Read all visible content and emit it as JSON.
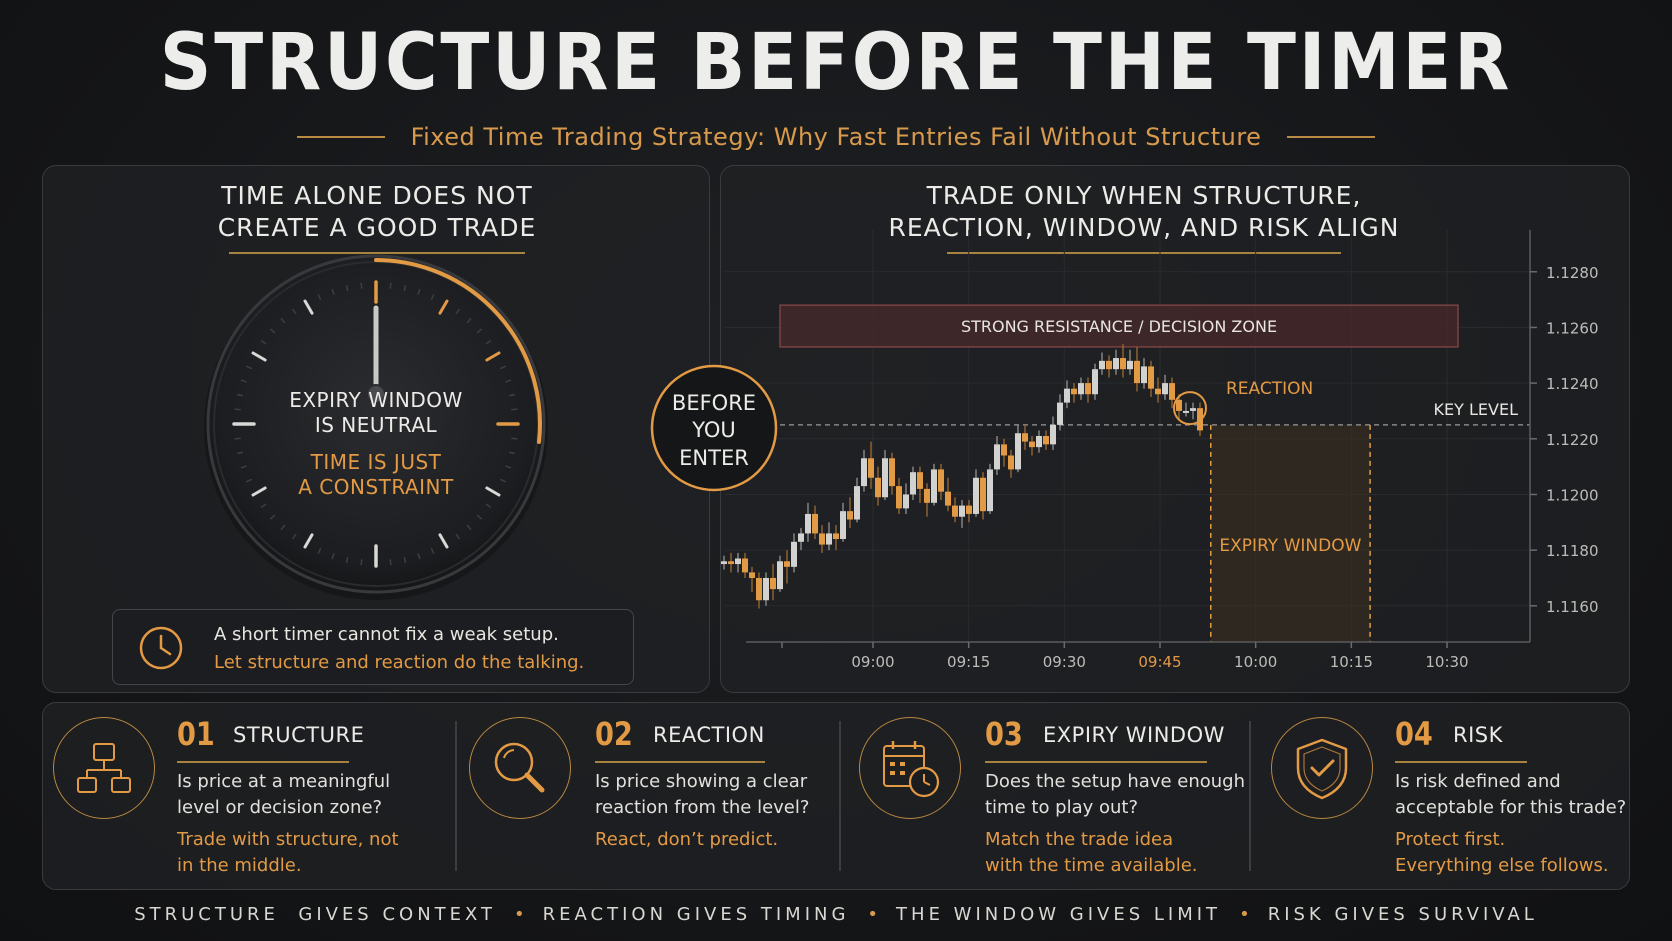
{
  "title": "STRUCTURE BEFORE THE TIMER",
  "subtitle": "Fixed Time Trading Strategy: Why Fast Entries Fail Without Structure",
  "left_panel": {
    "title_line1": "TIME ALONE DOES NOT",
    "title_line2": "CREATE A GOOD TRADE",
    "dial_line1": "EXPIRY WINDOW",
    "dial_line2": "IS NEUTRAL",
    "dial_line3": "TIME IS JUST",
    "dial_line4": "A CONSTRAINT",
    "tip_line1": "A short timer cannot fix a weak setup.",
    "tip_line2": "Let structure and reaction do the talking.",
    "tip_icon": "clock-icon"
  },
  "right_panel": {
    "title_line1": "TRADE ONLY WHEN STRUCTURE,",
    "title_line2": "REACTION, WINDOW, AND RISK ALIGN",
    "before_line1": "BEFORE",
    "before_line2": "YOU",
    "before_line3": "ENTER",
    "zone_label": "STRONG RESISTANCE / DECISION ZONE",
    "reaction_label": "REACTION",
    "key_level_label": "KEY LEVEL",
    "expiry_label": "EXPIRY WINDOW"
  },
  "chart_data": {
    "type": "candlestick",
    "y_ticks": [
      "1.1280",
      "1.1260",
      "1.1240",
      "1.1220",
      "1.1200",
      "1.1180",
      "1.1160"
    ],
    "y_tick_values": [
      1.128,
      1.126,
      1.124,
      1.122,
      1.12,
      1.118,
      1.116
    ],
    "x_ticks": [
      "09:00",
      "09:15",
      "09:30",
      "09:45",
      "10:00",
      "10:15",
      "10:30"
    ],
    "highlight_x_tick": "09:45",
    "ylim": [
      1.1147,
      1.1295
    ],
    "key_level": 1.1225,
    "resistance_zone": [
      1.1253,
      1.1268
    ],
    "expiry_window": [
      "09:47",
      "10:17"
    ],
    "colors": {
      "bull": "#d2d2d0",
      "bear": "#e39a45",
      "accent": "#e39a45"
    },
    "candles": [
      [
        "08:44",
        1.1175,
        1.1176,
        1.1173,
        1.1178
      ],
      [
        "08:45",
        1.1176,
        1.1175,
        1.1172,
        1.1179
      ],
      [
        "08:46",
        1.1175,
        1.1177,
        1.1172,
        1.1179
      ],
      [
        "08:47",
        1.1177,
        1.1172,
        1.117,
        1.1179
      ],
      [
        "08:48",
        1.1172,
        1.117,
        1.1165,
        1.1174
      ],
      [
        "08:49",
        1.117,
        1.1162,
        1.1159,
        1.1172
      ],
      [
        "08:50",
        1.1162,
        1.117,
        1.116,
        1.1172
      ],
      [
        "08:51",
        1.117,
        1.1166,
        1.1162,
        1.1175
      ],
      [
        "08:52",
        1.1166,
        1.1176,
        1.1165,
        1.1178
      ],
      [
        "08:53",
        1.1176,
        1.1174,
        1.1168,
        1.118
      ],
      [
        "08:54",
        1.1174,
        1.1183,
        1.1172,
        1.1186
      ],
      [
        "08:55",
        1.1183,
        1.1186,
        1.118,
        1.1188
      ],
      [
        "08:56",
        1.1186,
        1.1193,
        1.1183,
        1.1197
      ],
      [
        "08:57",
        1.1193,
        1.1186,
        1.1184,
        1.1196
      ],
      [
        "08:58",
        1.1186,
        1.1182,
        1.1179,
        1.1189
      ],
      [
        "08:59",
        1.1182,
        1.1186,
        1.118,
        1.119
      ],
      [
        "09:00",
        1.1186,
        1.1184,
        1.118,
        1.1189
      ],
      [
        "09:01",
        1.1184,
        1.1194,
        1.1183,
        1.1197
      ],
      [
        "09:02",
        1.1194,
        1.1191,
        1.1188,
        1.1199
      ],
      [
        "09:03",
        1.1191,
        1.1203,
        1.119,
        1.1206
      ],
      [
        "09:04",
        1.1203,
        1.1213,
        1.1201,
        1.1216
      ],
      [
        "09:05",
        1.1213,
        1.1206,
        1.1202,
        1.1219
      ],
      [
        "09:06",
        1.1206,
        1.1199,
        1.1196,
        1.121
      ],
      [
        "09:07",
        1.1199,
        1.1213,
        1.1198,
        1.1216
      ],
      [
        "09:08",
        1.1213,
        1.1203,
        1.12,
        1.1215
      ],
      [
        "09:09",
        1.1203,
        1.1195,
        1.1193,
        1.1206
      ],
      [
        "09:10",
        1.1195,
        1.12,
        1.1193,
        1.1204
      ],
      [
        "09:11",
        1.12,
        1.1208,
        1.1198,
        1.121
      ],
      [
        "09:12",
        1.1208,
        1.1202,
        1.1197,
        1.121
      ],
      [
        "09:13",
        1.1202,
        1.1197,
        1.1192,
        1.1204
      ],
      [
        "09:14",
        1.1197,
        1.1209,
        1.1196,
        1.1211
      ],
      [
        "09:15",
        1.1209,
        1.1201,
        1.1198,
        1.1211
      ],
      [
        "09:16",
        1.1201,
        1.1196,
        1.1194,
        1.1206
      ],
      [
        "09:17",
        1.1196,
        1.1192,
        1.119,
        1.1199
      ],
      [
        "09:18",
        1.1192,
        1.1196,
        1.1188,
        1.1198
      ],
      [
        "09:19",
        1.1196,
        1.1193,
        1.119,
        1.1198
      ],
      [
        "09:20",
        1.1193,
        1.1206,
        1.1192,
        1.1209
      ],
      [
        "09:21",
        1.1206,
        1.1194,
        1.1191,
        1.1208
      ],
      [
        "09:22",
        1.1194,
        1.1209,
        1.1193,
        1.1211
      ],
      [
        "09:23",
        1.1209,
        1.1218,
        1.1207,
        1.1221
      ],
      [
        "09:24",
        1.1218,
        1.1214,
        1.121,
        1.122
      ],
      [
        "09:25",
        1.1214,
        1.1209,
        1.1206,
        1.1216
      ],
      [
        "09:26",
        1.1209,
        1.1222,
        1.1208,
        1.1225
      ],
      [
        "09:27",
        1.1222,
        1.1219,
        1.1216,
        1.1225
      ],
      [
        "09:28",
        1.1219,
        1.1217,
        1.1214,
        1.1221
      ],
      [
        "09:29",
        1.1217,
        1.1221,
        1.1215,
        1.1223
      ],
      [
        "09:30",
        1.1221,
        1.1218,
        1.1216,
        1.1223
      ],
      [
        "09:31",
        1.1218,
        1.1225,
        1.1216,
        1.1228
      ],
      [
        "09:32",
        1.1225,
        1.1233,
        1.1223,
        1.1236
      ],
      [
        "09:33",
        1.1233,
        1.1238,
        1.1231,
        1.1241
      ],
      [
        "09:34",
        1.1238,
        1.1236,
        1.1233,
        1.124
      ],
      [
        "09:35",
        1.1236,
        1.124,
        1.1234,
        1.1242
      ],
      [
        "09:36",
        1.124,
        1.1236,
        1.1233,
        1.1242
      ],
      [
        "09:37",
        1.1236,
        1.1245,
        1.1234,
        1.1247
      ],
      [
        "09:38",
        1.1245,
        1.1248,
        1.1243,
        1.1251
      ],
      [
        "09:39",
        1.1248,
        1.1245,
        1.1242,
        1.125
      ],
      [
        "09:40",
        1.1245,
        1.1249,
        1.1243,
        1.1252
      ],
      [
        "09:41",
        1.1249,
        1.1245,
        1.1242,
        1.1254
      ],
      [
        "09:42",
        1.1245,
        1.1248,
        1.1243,
        1.1252
      ],
      [
        "09:43",
        1.1248,
        1.124,
        1.1237,
        1.1253
      ],
      [
        "09:44",
        1.124,
        1.1246,
        1.1238,
        1.1249
      ],
      [
        "09:45",
        1.1246,
        1.1238,
        1.1235,
        1.1248
      ],
      [
        "09:46",
        1.1238,
        1.1236,
        1.1233,
        1.1242
      ],
      [
        "09:47",
        1.1236,
        1.124,
        1.1234,
        1.1243
      ],
      [
        "09:48",
        1.124,
        1.1234,
        1.1231,
        1.1242
      ],
      [
        "09:49",
        1.1234,
        1.123,
        1.1227,
        1.1236
      ],
      [
        "09:50",
        1.123,
        1.123,
        1.1228,
        1.1233
      ],
      [
        "09:51",
        1.123,
        1.1231,
        1.1227,
        1.1233
      ],
      [
        "09:52",
        1.1231,
        1.1223,
        1.1221,
        1.1233
      ]
    ]
  },
  "steps": [
    {
      "num": "01",
      "title": "STRUCTURE",
      "q1": "Is price at a meaningful",
      "q2": "level or decision zone?",
      "a1": "Trade with structure, not",
      "a2": "in the middle.",
      "icon": "hierarchy-icon"
    },
    {
      "num": "02",
      "title": "REACTION",
      "q1": "Is price showing a clear",
      "q2": "reaction from the level?",
      "a1": "React, don’t predict.",
      "a2": "",
      "icon": "magnifier-icon"
    },
    {
      "num": "03",
      "title": "EXPIRY WINDOW",
      "q1": "Does the setup have enough",
      "q2": "time to play out?",
      "a1": "Match the trade idea",
      "a2": "with the time available.",
      "icon": "calendar-clock-icon"
    },
    {
      "num": "04",
      "title": "RISK",
      "q1": "Is risk defined and",
      "q2": "acceptable for this trade?",
      "a1": "Protect first.",
      "a2": "Everything else follows.",
      "icon": "shield-check-icon"
    }
  ],
  "footer": {
    "item1": "STRUCTURE  GIVES CONTEXT",
    "item2": "REACTION GIVES TIMING",
    "item3": "THE WINDOW GIVES LIMIT",
    "item4": "RISK GIVES SURVIVAL",
    "separator": "•"
  }
}
